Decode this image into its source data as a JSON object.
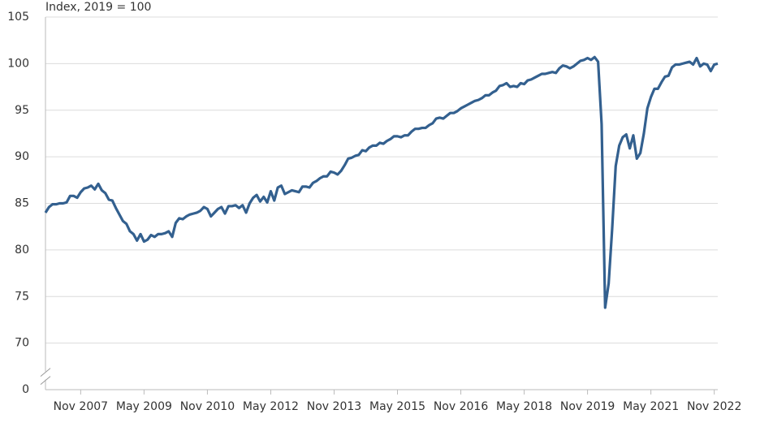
{
  "chart_data": {
    "type": "line",
    "subtitle": "Index, 2019 = 100",
    "x": [
      "2007-01",
      "2007-02",
      "2007-03",
      "2007-04",
      "2007-05",
      "2007-06",
      "2007-07",
      "2007-08",
      "2007-09",
      "2007-10",
      "2007-11",
      "2007-12",
      "2008-01",
      "2008-02",
      "2008-03",
      "2008-04",
      "2008-05",
      "2008-06",
      "2008-07",
      "2008-08",
      "2008-09",
      "2008-10",
      "2008-11",
      "2008-12",
      "2009-01",
      "2009-02",
      "2009-03",
      "2009-04",
      "2009-05",
      "2009-06",
      "2009-07",
      "2009-08",
      "2009-09",
      "2009-10",
      "2009-11",
      "2009-12",
      "2010-01",
      "2010-02",
      "2010-03",
      "2010-04",
      "2010-05",
      "2010-06",
      "2010-07",
      "2010-08",
      "2010-09",
      "2010-10",
      "2010-11",
      "2010-12",
      "2011-01",
      "2011-02",
      "2011-03",
      "2011-04",
      "2011-05",
      "2011-06",
      "2011-07",
      "2011-08",
      "2011-09",
      "2011-10",
      "2011-11",
      "2011-12",
      "2012-01",
      "2012-02",
      "2012-03",
      "2012-04",
      "2012-05",
      "2012-06",
      "2012-07",
      "2012-08",
      "2012-09",
      "2012-10",
      "2012-11",
      "2012-12",
      "2013-01",
      "2013-02",
      "2013-03",
      "2013-04",
      "2013-05",
      "2013-06",
      "2013-07",
      "2013-08",
      "2013-09",
      "2013-10",
      "2013-11",
      "2013-12",
      "2014-01",
      "2014-02",
      "2014-03",
      "2014-04",
      "2014-05",
      "2014-06",
      "2014-07",
      "2014-08",
      "2014-09",
      "2014-10",
      "2014-11",
      "2014-12",
      "2015-01",
      "2015-02",
      "2015-03",
      "2015-04",
      "2015-05",
      "2015-06",
      "2015-07",
      "2015-08",
      "2015-09",
      "2015-10",
      "2015-11",
      "2015-12",
      "2016-01",
      "2016-02",
      "2016-03",
      "2016-04",
      "2016-05",
      "2016-06",
      "2016-07",
      "2016-08",
      "2016-09",
      "2016-10",
      "2016-11",
      "2016-12",
      "2017-01",
      "2017-02",
      "2017-03",
      "2017-04",
      "2017-05",
      "2017-06",
      "2017-07",
      "2017-08",
      "2017-09",
      "2017-10",
      "2017-11",
      "2017-12",
      "2018-01",
      "2018-02",
      "2018-03",
      "2018-04",
      "2018-05",
      "2018-06",
      "2018-07",
      "2018-08",
      "2018-09",
      "2018-10",
      "2018-11",
      "2018-12",
      "2019-01",
      "2019-02",
      "2019-03",
      "2019-04",
      "2019-05",
      "2019-06",
      "2019-07",
      "2019-08",
      "2019-09",
      "2019-10",
      "2019-11",
      "2019-12",
      "2020-01",
      "2020-02",
      "2020-03",
      "2020-04",
      "2020-05",
      "2020-06",
      "2020-07",
      "2020-08",
      "2020-09",
      "2020-10",
      "2020-11",
      "2020-12",
      "2021-01",
      "2021-02",
      "2021-03",
      "2021-04",
      "2021-05",
      "2021-06",
      "2021-07",
      "2021-08",
      "2021-09",
      "2021-10",
      "2021-11",
      "2021-12",
      "2022-01",
      "2022-02",
      "2022-03",
      "2022-04",
      "2022-05",
      "2022-06",
      "2022-07",
      "2022-08",
      "2022-09",
      "2022-10",
      "2022-11",
      "2022-12"
    ],
    "series": [
      {
        "color": "#33608f",
        "values": [
          84.0,
          84.6,
          84.9,
          84.9,
          85.0,
          85.0,
          85.1,
          85.8,
          85.8,
          85.6,
          86.2,
          86.6,
          86.7,
          86.9,
          86.5,
          87.1,
          86.4,
          86.1,
          85.4,
          85.3,
          84.5,
          83.8,
          83.1,
          82.8,
          82.0,
          81.7,
          81.0,
          81.7,
          80.9,
          81.1,
          81.6,
          81.4,
          81.7,
          81.7,
          81.8,
          82.0,
          81.4,
          82.9,
          83.4,
          83.3,
          83.6,
          83.8,
          83.9,
          84.0,
          84.2,
          84.6,
          84.4,
          83.6,
          84.0,
          84.4,
          84.6,
          83.9,
          84.7,
          84.7,
          84.8,
          84.5,
          84.8,
          84.0,
          85.0,
          85.6,
          85.9,
          85.2,
          85.7,
          85.1,
          86.3,
          85.3,
          86.7,
          86.9,
          86.0,
          86.2,
          86.4,
          86.3,
          86.2,
          86.8,
          86.8,
          86.7,
          87.2,
          87.4,
          87.7,
          87.9,
          87.9,
          88.4,
          88.3,
          88.1,
          88.5,
          89.1,
          89.8,
          89.9,
          90.1,
          90.2,
          90.7,
          90.6,
          91.0,
          91.2,
          91.2,
          91.5,
          91.4,
          91.7,
          91.9,
          92.2,
          92.2,
          92.1,
          92.3,
          92.3,
          92.7,
          93.0,
          93.0,
          93.1,
          93.1,
          93.4,
          93.6,
          94.1,
          94.2,
          94.1,
          94.4,
          94.7,
          94.7,
          94.9,
          95.2,
          95.4,
          95.6,
          95.8,
          96.0,
          96.1,
          96.3,
          96.6,
          96.6,
          96.9,
          97.1,
          97.6,
          97.7,
          97.9,
          97.5,
          97.6,
          97.5,
          97.9,
          97.8,
          98.2,
          98.3,
          98.5,
          98.7,
          98.9,
          98.9,
          99.0,
          99.1,
          99.0,
          99.5,
          99.8,
          99.7,
          99.5,
          99.7,
          100.0,
          100.3,
          100.4,
          100.6,
          100.4,
          100.7,
          100.2,
          93.5,
          73.8,
          76.4,
          82.3,
          89.0,
          91.2,
          92.1,
          92.4,
          90.9,
          92.3,
          89.8,
          90.4,
          92.5,
          95.2,
          96.4,
          97.3,
          97.3,
          98.0,
          98.6,
          98.7,
          99.6,
          99.9,
          99.9,
          100.0,
          100.1,
          100.2,
          99.9,
          100.6,
          99.7,
          100.0,
          99.9,
          99.2,
          99.9,
          100.0
        ]
      }
    ],
    "ylim": [
      65,
      105
    ],
    "yticks": [
      0,
      70,
      75,
      80,
      85,
      90,
      95,
      100,
      105
    ],
    "y_axis_break": true,
    "xticks": [
      {
        "value": "2007-11",
        "label": "Nov 2007"
      },
      {
        "value": "2009-05",
        "label": "May 2009"
      },
      {
        "value": "2010-11",
        "label": "Nov 2010"
      },
      {
        "value": "2012-05",
        "label": "May 2012"
      },
      {
        "value": "2013-11",
        "label": "Nov 2013"
      },
      {
        "value": "2015-05",
        "label": "May 2015"
      },
      {
        "value": "2016-11",
        "label": "Nov 2016"
      },
      {
        "value": "2018-05",
        "label": "May 2018"
      },
      {
        "value": "2019-11",
        "label": "Nov 2019"
      },
      {
        "value": "2021-05",
        "label": "May 2021"
      },
      {
        "value": "2022-11",
        "label": "Nov 2022"
      }
    ],
    "grid": true
  }
}
